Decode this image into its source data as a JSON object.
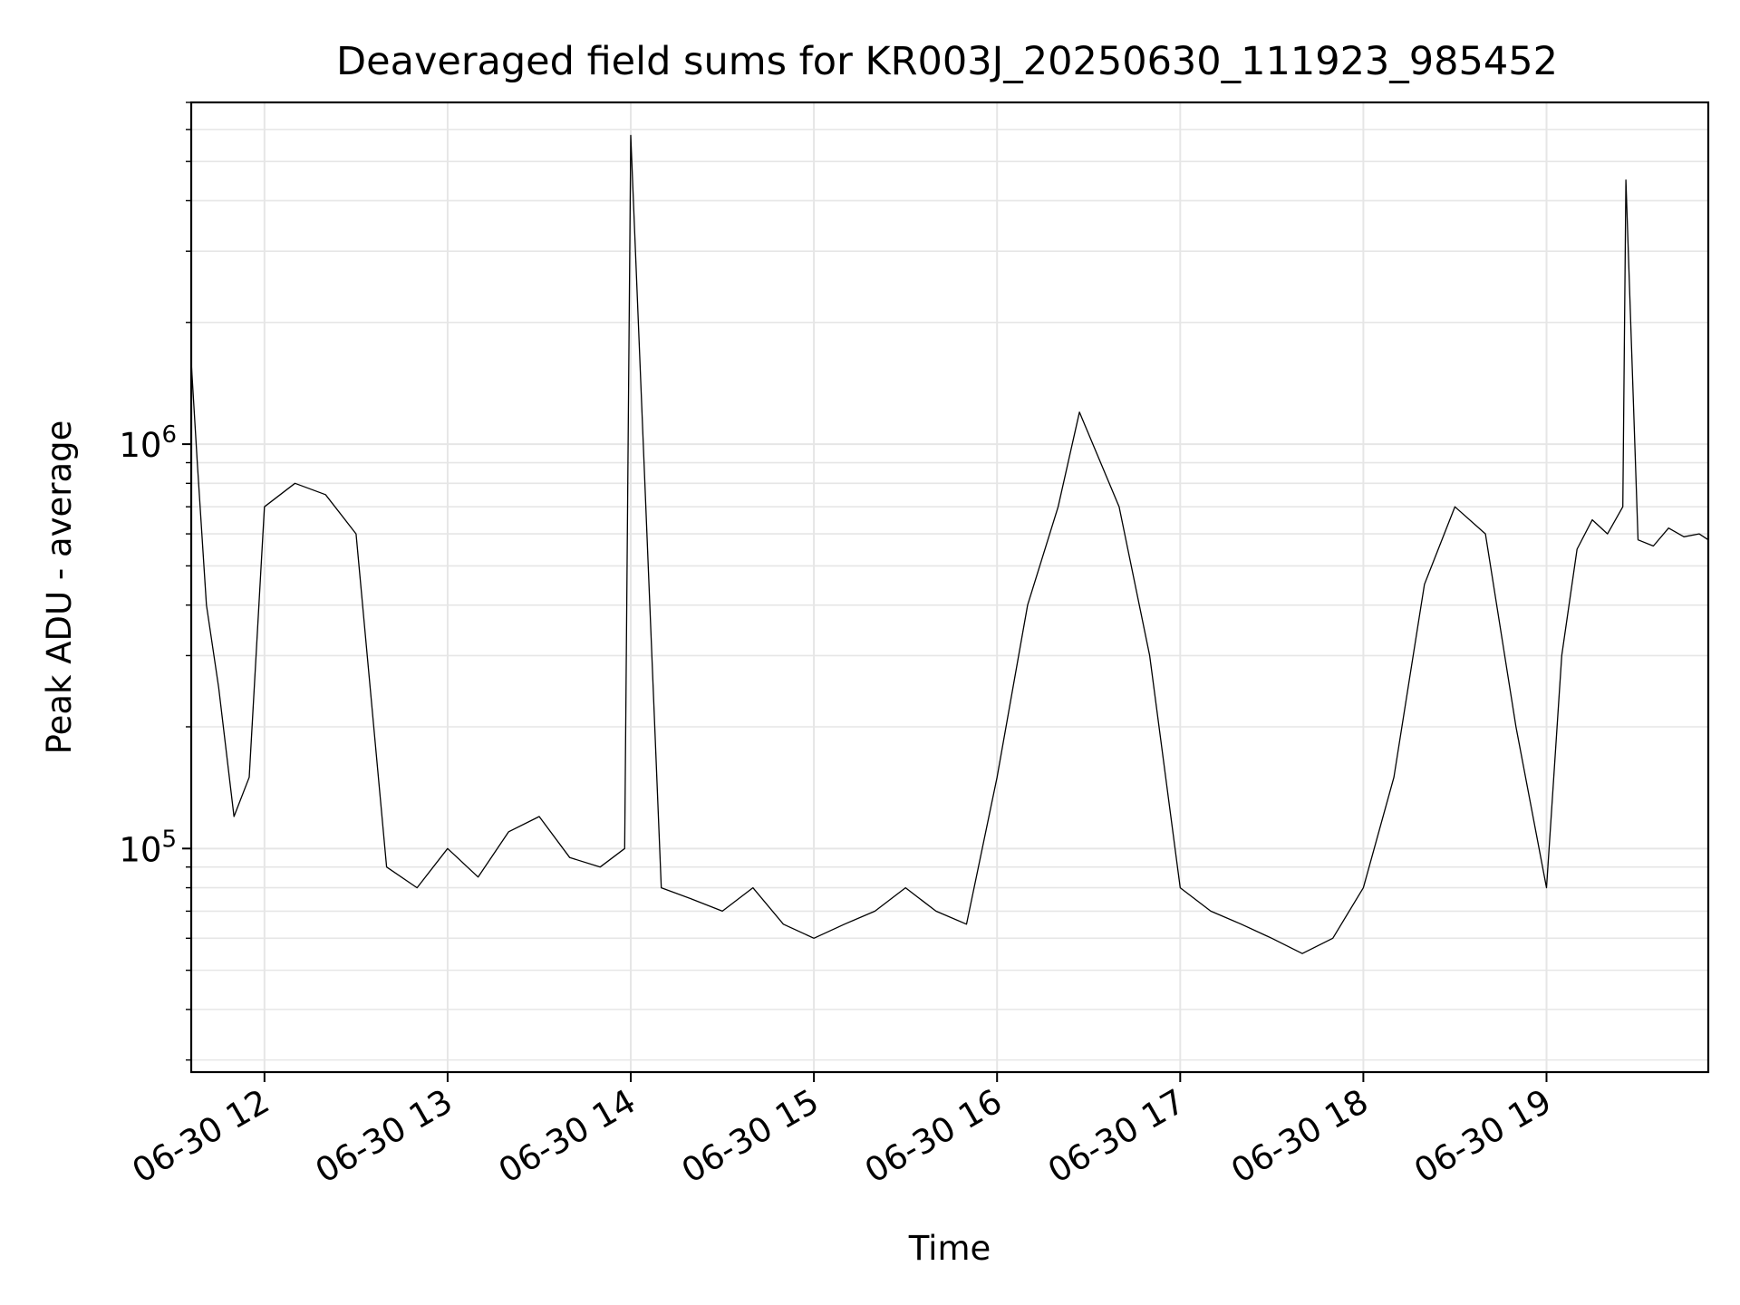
{
  "chart_data": {
    "type": "line",
    "title": "Deaveraged field sums for KR003J_20250630_111923_985452",
    "xlabel": "Time",
    "ylabel": "Peak ADU - average",
    "yscale": "log",
    "ylim": [
      28000,
      7000000
    ],
    "xlim": [
      "2025-06-30 11:36",
      "2025-06-30 19:53"
    ],
    "grid": true,
    "line_color": "#000000",
    "x_ticks": [
      {
        "value": "2025-06-30 12:00",
        "label": "06-30 12"
      },
      {
        "value": "2025-06-30 13:00",
        "label": "06-30 13"
      },
      {
        "value": "2025-06-30 14:00",
        "label": "06-30 14"
      },
      {
        "value": "2025-06-30 15:00",
        "label": "06-30 15"
      },
      {
        "value": "2025-06-30 16:00",
        "label": "06-30 16"
      },
      {
        "value": "2025-06-30 17:00",
        "label": "06-30 17"
      },
      {
        "value": "2025-06-30 18:00",
        "label": "06-30 18"
      },
      {
        "value": "2025-06-30 19:00",
        "label": "06-30 19"
      }
    ],
    "y_ticks": [
      {
        "value": 100000,
        "base": "10",
        "exp": "5"
      },
      {
        "value": 1000000,
        "base": "10",
        "exp": "6"
      }
    ],
    "series": [
      {
        "x": [
          "2025-06-30 11:36",
          "2025-06-30 11:38",
          "2025-06-30 11:41",
          "2025-06-30 11:45",
          "2025-06-30 11:50",
          "2025-06-30 11:55",
          "2025-06-30 12:00",
          "2025-06-30 12:10",
          "2025-06-30 12:20",
          "2025-06-30 12:30",
          "2025-06-30 12:40",
          "2025-06-30 12:50",
          "2025-06-30 13:00",
          "2025-06-30 13:10",
          "2025-06-30 13:20",
          "2025-06-30 13:30",
          "2025-06-30 13:40",
          "2025-06-30 13:50",
          "2025-06-30 13:58",
          "2025-06-30 14:00",
          "2025-06-30 14:10",
          "2025-06-30 14:20",
          "2025-06-30 14:30",
          "2025-06-30 14:40",
          "2025-06-30 14:50",
          "2025-06-30 15:00",
          "2025-06-30 15:10",
          "2025-06-30 15:20",
          "2025-06-30 15:30",
          "2025-06-30 15:40",
          "2025-06-30 15:50",
          "2025-06-30 16:00",
          "2025-06-30 16:10",
          "2025-06-30 16:20",
          "2025-06-30 16:27",
          "2025-06-30 16:40",
          "2025-06-30 16:50",
          "2025-06-30 17:00",
          "2025-06-30 17:10",
          "2025-06-30 17:20",
          "2025-06-30 17:30",
          "2025-06-30 17:40",
          "2025-06-30 17:50",
          "2025-06-30 18:00",
          "2025-06-30 18:10",
          "2025-06-30 18:20",
          "2025-06-30 18:30",
          "2025-06-30 18:40",
          "2025-06-30 18:50",
          "2025-06-30 19:00",
          "2025-06-30 19:05",
          "2025-06-30 19:10",
          "2025-06-30 19:15",
          "2025-06-30 19:20",
          "2025-06-30 19:25",
          "2025-06-30 19:26",
          "2025-06-30 19:30",
          "2025-06-30 19:35",
          "2025-06-30 19:40",
          "2025-06-30 19:45",
          "2025-06-30 19:50",
          "2025-06-30 19:53"
        ],
        "values": [
          1600000,
          900000,
          400000,
          250000,
          120000,
          150000,
          700000,
          800000,
          750000,
          600000,
          90000,
          80000,
          100000,
          85000,
          110000,
          120000,
          95000,
          90000,
          100000,
          5800000,
          80000,
          75000,
          70000,
          80000,
          65000,
          60000,
          65000,
          70000,
          80000,
          70000,
          65000,
          150000,
          400000,
          700000,
          1200000,
          700000,
          300000,
          80000,
          70000,
          65000,
          60000,
          55000,
          60000,
          80000,
          150000,
          450000,
          700000,
          600000,
          200000,
          80000,
          300000,
          550000,
          650000,
          600000,
          700000,
          4500000,
          580000,
          560000,
          620000,
          590000,
          600000,
          580000
        ]
      }
    ]
  }
}
